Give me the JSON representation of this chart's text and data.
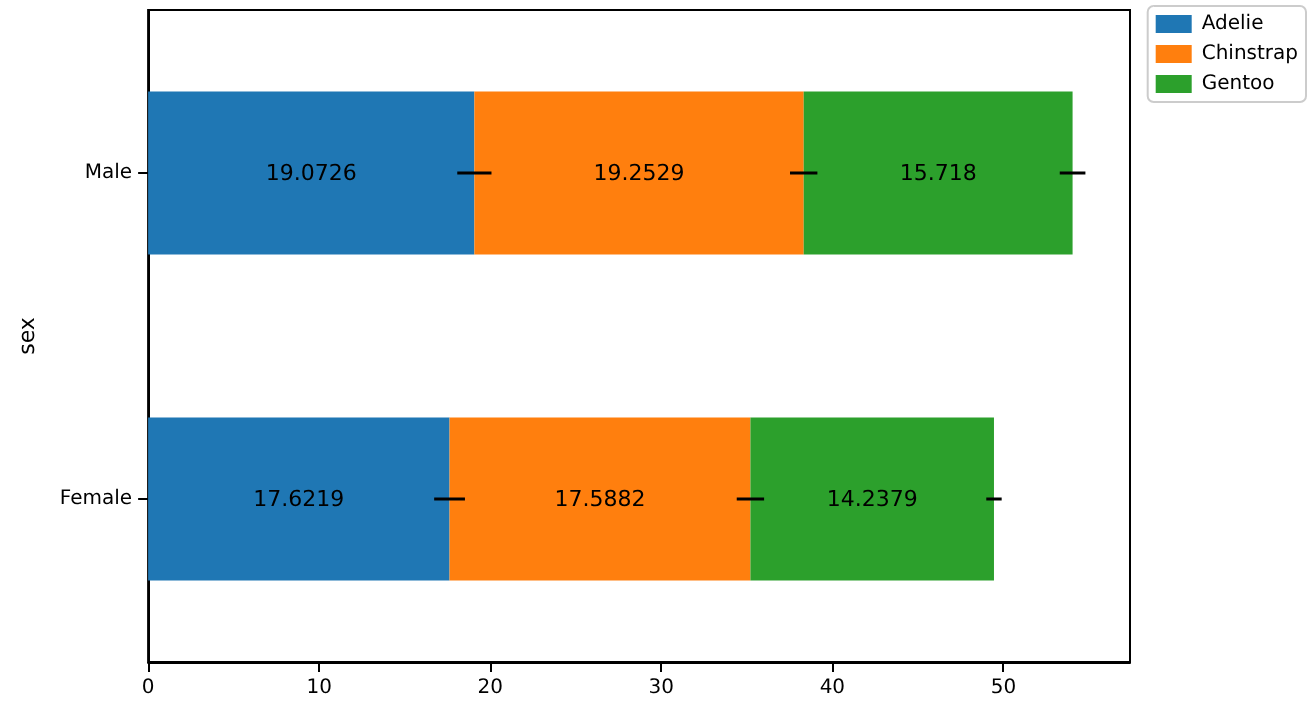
{
  "chart_data": {
    "type": "bar",
    "orientation": "horizontal",
    "stacked": true,
    "ylabel": "sex",
    "categories": [
      "Male",
      "Female"
    ],
    "series": [
      {
        "name": "Adelie",
        "color": "#1f77b4",
        "values": [
          19.0726,
          17.6219
        ],
        "errors": [
          1.0,
          0.9
        ]
      },
      {
        "name": "Chinstrap",
        "color": "#ff7f0e",
        "values": [
          19.2529,
          17.5882
        ],
        "errors": [
          0.8,
          0.8
        ]
      },
      {
        "name": "Gentoo",
        "color": "#2ca02c",
        "values": [
          15.718,
          14.2379
        ],
        "errors": [
          0.75,
          0.45
        ]
      }
    ],
    "xlim": [
      0,
      57.4
    ],
    "xticks": [
      0,
      10,
      20,
      30,
      40,
      50
    ],
    "data_labels": true,
    "legend": "top right",
    "grid": false
  }
}
